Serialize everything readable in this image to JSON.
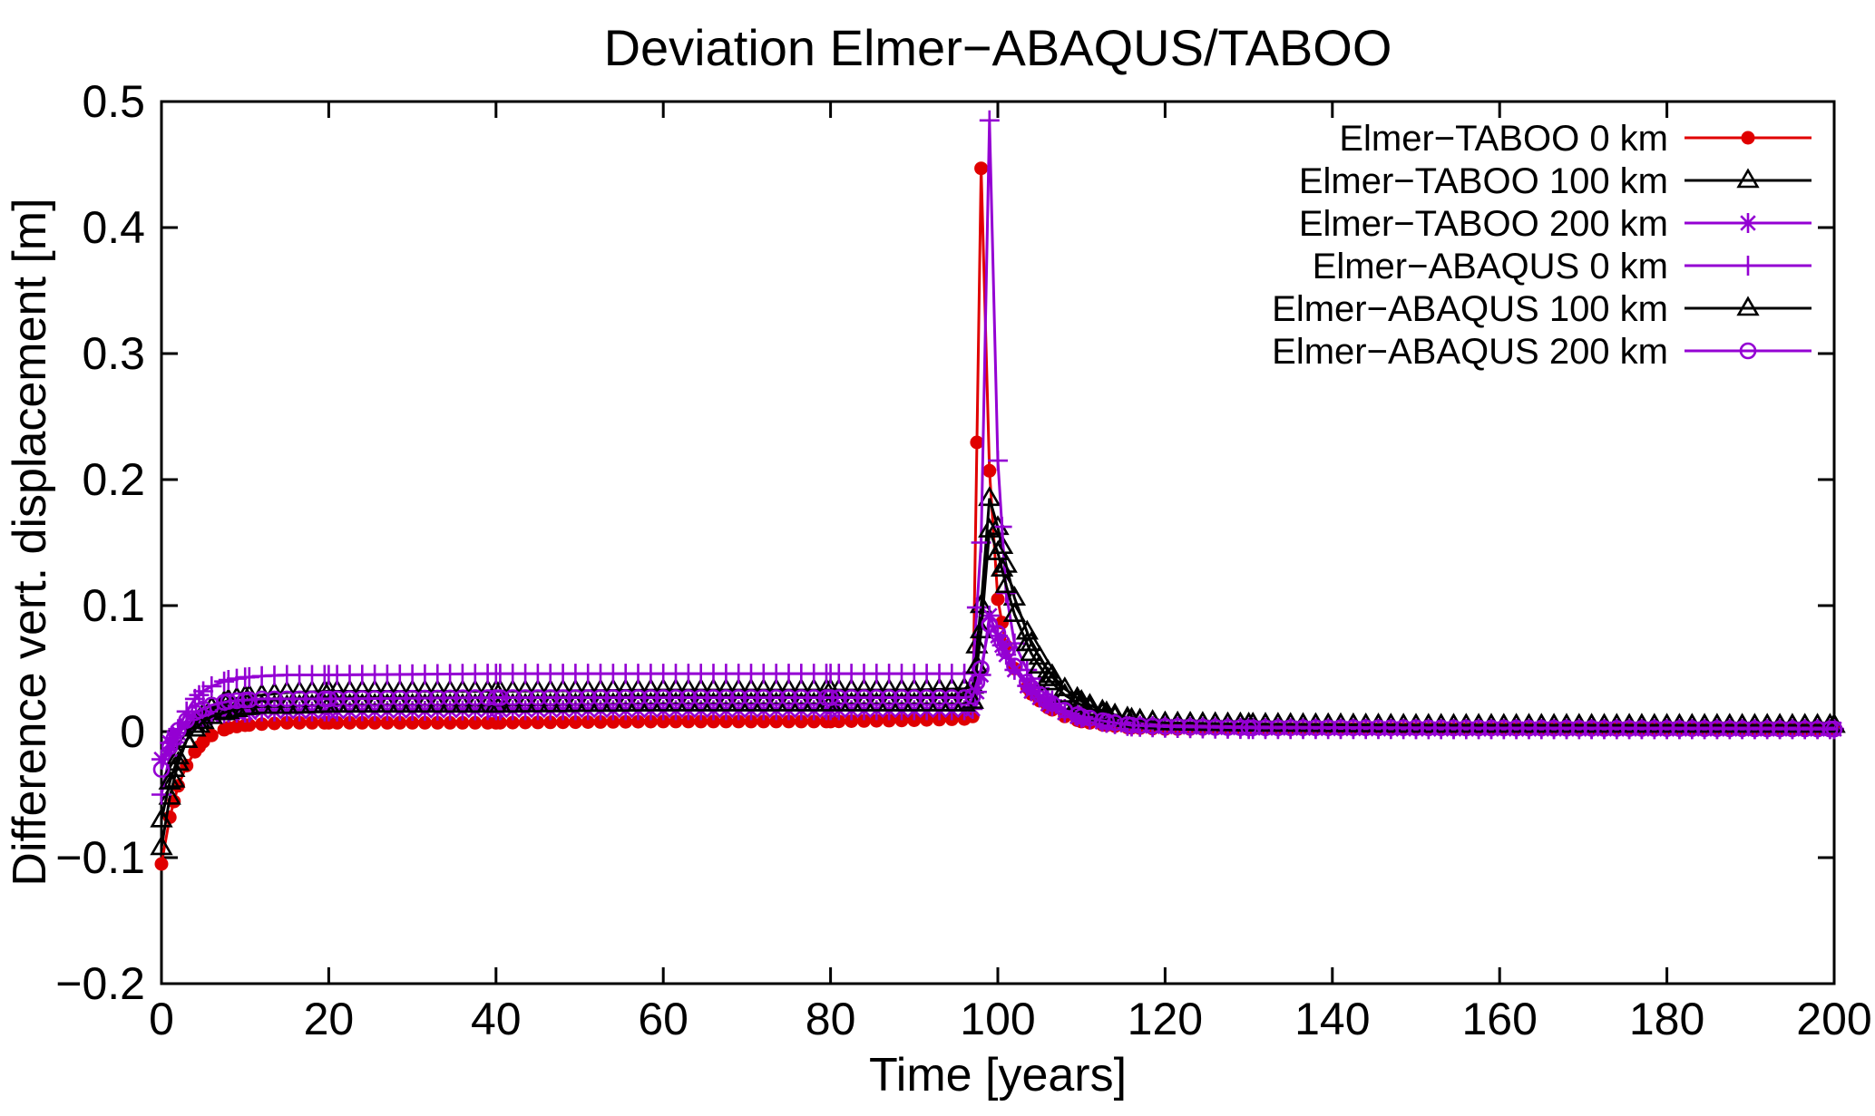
{
  "page": {
    "background": "#ffffff"
  },
  "chart_data": {
    "type": "line",
    "title": "Deviation Elmer−ABAQUS/TABOO",
    "xlabel": "Time [years]",
    "ylabel": "Difference vert. displacement [m]",
    "xlim": [
      0,
      200
    ],
    "ylim": [
      -0.2,
      0.5
    ],
    "xticks": [
      0,
      20,
      40,
      60,
      80,
      100,
      120,
      140,
      160,
      180,
      200
    ],
    "yticks": [
      -0.2,
      -0.1,
      0,
      0.1,
      0.2,
      0.3,
      0.4,
      0.5
    ],
    "grid": false,
    "legend_position": "top-right-inside",
    "frame_color": "#000000",
    "marker_step_years": 1.5,
    "x": [
      0,
      1,
      2,
      3,
      4,
      5,
      6,
      8,
      10,
      12,
      15,
      20,
      40,
      60,
      80,
      90,
      96,
      97,
      98,
      99,
      100,
      101,
      102,
      104,
      106,
      108,
      110,
      113,
      116,
      120,
      130,
      150,
      200
    ],
    "series": [
      {
        "name": "Elmer−TABOO 0 km",
        "color": "#e00000",
        "marker": "filled-circle",
        "y": [
          -0.105,
          -0.068,
          -0.043,
          -0.027,
          -0.016,
          -0.008,
          -0.003,
          0.003,
          0.005,
          0.006,
          0.007,
          0.007,
          0.007,
          0.008,
          0.008,
          0.009,
          0.01,
          0.012,
          0.447,
          0.207,
          0.105,
          0.068,
          0.05,
          0.03,
          0.019,
          0.012,
          0.008,
          0.005,
          0.003,
          0.002,
          0.002,
          0.002,
          0.002
        ]
      },
      {
        "name": "Elmer−TABOO 100 km",
        "color": "#000000",
        "marker": "open-triangle",
        "y": [
          -0.092,
          -0.052,
          -0.025,
          -0.007,
          0.005,
          0.014,
          0.019,
          0.025,
          0.028,
          0.029,
          0.031,
          0.032,
          0.032,
          0.033,
          0.033,
          0.033,
          0.034,
          0.036,
          0.1,
          0.185,
          0.162,
          0.132,
          0.106,
          0.07,
          0.048,
          0.034,
          0.024,
          0.015,
          0.01,
          0.007,
          0.006,
          0.005,
          0.005
        ]
      },
      {
        "name": "Elmer−TABOO 200 km",
        "color": "#9400d3",
        "marker": "asterisk",
        "y": [
          -0.022,
          -0.009,
          -0.001,
          0.005,
          0.008,
          0.011,
          0.013,
          0.015,
          0.015,
          0.016,
          0.016,
          0.016,
          0.017,
          0.017,
          0.017,
          0.017,
          0.017,
          0.018,
          0.045,
          0.092,
          0.076,
          0.061,
          0.049,
          0.032,
          0.022,
          0.015,
          0.011,
          0.007,
          0.005,
          0.004,
          0.003,
          0.002,
          0.002
        ]
      },
      {
        "name": "Elmer−ABAQUS 0 km",
        "color": "#9400d3",
        "marker": "plus",
        "y": [
          -0.05,
          -0.019,
          0.002,
          0.016,
          0.026,
          0.032,
          0.036,
          0.041,
          0.043,
          0.044,
          0.045,
          0.045,
          0.046,
          0.046,
          0.046,
          0.046,
          0.046,
          0.047,
          0.15,
          0.485,
          0.215,
          0.11,
          0.07,
          0.042,
          0.027,
          0.018,
          0.012,
          0.007,
          0.004,
          0.003,
          0.002,
          0.002,
          0.002
        ]
      },
      {
        "name": "Elmer−ABAQUS 100 km",
        "color": "#000000",
        "marker": "open-triangle",
        "y": [
          -0.07,
          -0.04,
          -0.02,
          -0.007,
          0.002,
          0.008,
          0.012,
          0.016,
          0.019,
          0.02,
          0.02,
          0.021,
          0.021,
          0.022,
          0.022,
          0.022,
          0.022,
          0.024,
          0.08,
          0.16,
          0.142,
          0.116,
          0.093,
          0.062,
          0.042,
          0.029,
          0.021,
          0.013,
          0.009,
          0.007,
          0.006,
          0.005,
          0.005
        ]
      },
      {
        "name": "Elmer−ABAQUS 200 km",
        "color": "#9400d3",
        "marker": "open-circle",
        "y": [
          -0.03,
          -0.012,
          0.001,
          0.009,
          0.015,
          0.018,
          0.021,
          0.024,
          0.025,
          0.026,
          0.026,
          0.026,
          0.027,
          0.027,
          0.027,
          0.027,
          0.027,
          0.028,
          0.05,
          0.085,
          0.078,
          0.064,
          0.052,
          0.035,
          0.024,
          0.017,
          0.012,
          0.008,
          0.005,
          0.004,
          0.003,
          0.003,
          0.002
        ]
      }
    ]
  }
}
